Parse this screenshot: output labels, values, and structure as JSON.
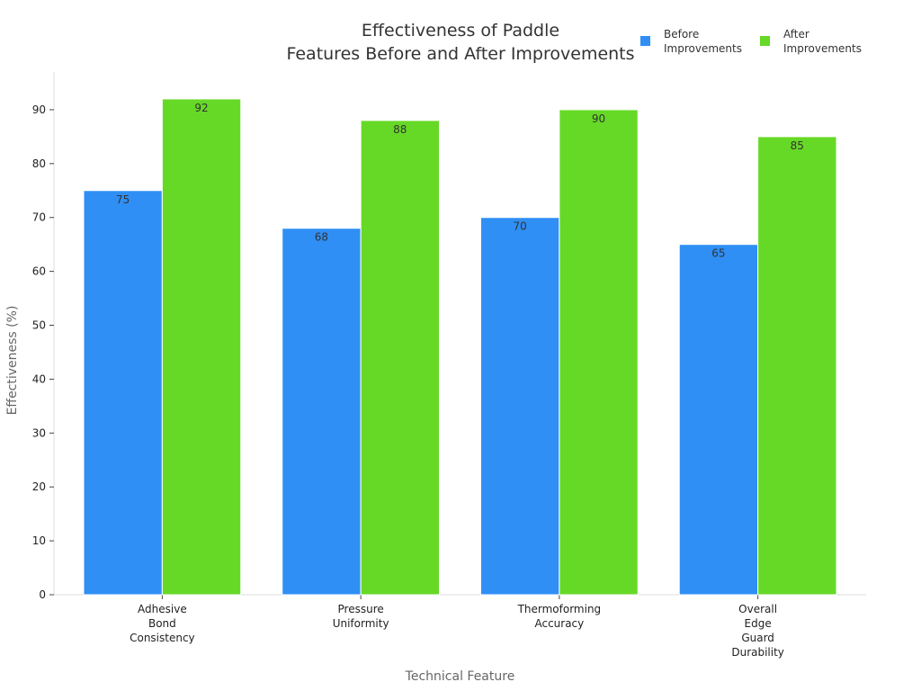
{
  "chart_data": {
    "type": "bar",
    "title": [
      "Effectiveness of Paddle",
      "Features Before and After Improvements"
    ],
    "xlabel": "Technical Feature",
    "ylabel": "Effectiveness (%)",
    "ylim": [
      0,
      97
    ],
    "yticks": [
      0,
      10,
      20,
      30,
      40,
      50,
      60,
      70,
      80,
      90
    ],
    "grid": false,
    "legend": "top-right",
    "categories": [
      [
        "Adhesive",
        "Bond",
        "Consistency"
      ],
      [
        "Pressure",
        "Uniformity"
      ],
      [
        "Thermoforming",
        "Accuracy"
      ],
      [
        "Overall",
        "Edge",
        "Guard",
        "Durability"
      ]
    ],
    "series": [
      {
        "name": [
          "Before",
          "Improvements"
        ],
        "color": "#2f8ff5",
        "values": [
          75,
          68,
          70,
          65
        ]
      },
      {
        "name": [
          "After",
          "Improvements"
        ],
        "color": "#66d926",
        "values": [
          92,
          88,
          90,
          85
        ]
      }
    ]
  }
}
